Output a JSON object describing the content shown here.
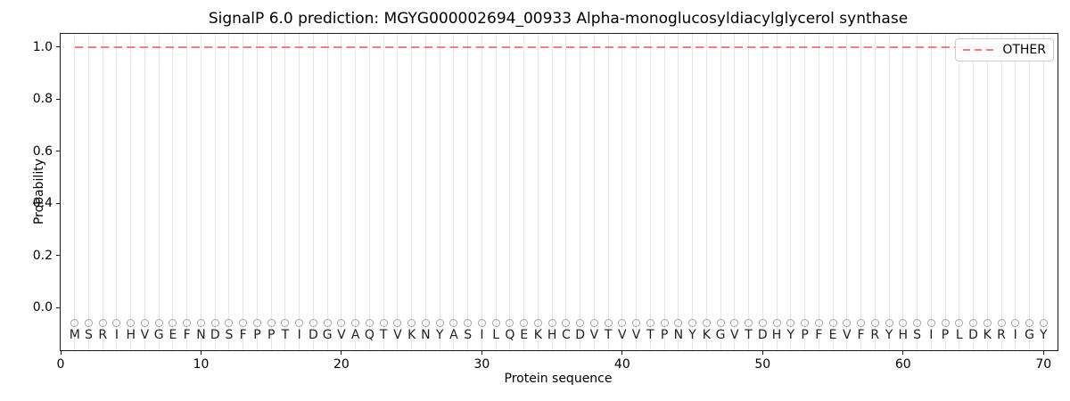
{
  "chart_data": {
    "type": "line",
    "title": "SignalP 6.0 prediction: MGYG000002694_00933 Alpha-monoglucosyldiacylglycerol synthase",
    "xlabel": "Protein sequence",
    "ylabel": "Probability",
    "xlim": [
      0,
      71
    ],
    "ylim": [
      -0.164,
      1.051
    ],
    "x_ticks": [
      0,
      10,
      20,
      30,
      40,
      50,
      60,
      70
    ],
    "y_ticks": [
      "0.0",
      "0.2",
      "0.4",
      "0.6",
      "0.8",
      "1.0"
    ],
    "grid": {
      "vertical_per_position": true,
      "horizontal": false
    },
    "legend": {
      "position": "upper right",
      "entries": [
        {
          "label": "OTHER",
          "color": "#f08080",
          "linestyle": "dashed"
        }
      ]
    },
    "series": [
      {
        "name": "OTHER",
        "color": "#f08080",
        "linestyle": "dashed",
        "linewidth": 2,
        "x": [
          1,
          2,
          3,
          4,
          5,
          6,
          7,
          8,
          9,
          10,
          11,
          12,
          13,
          14,
          15,
          16,
          17,
          18,
          19,
          20,
          21,
          22,
          23,
          24,
          25,
          26,
          27,
          28,
          29,
          30,
          31,
          32,
          33,
          34,
          35,
          36,
          37,
          38,
          39,
          40,
          41,
          42,
          43,
          44,
          45,
          46,
          47,
          48,
          49,
          50,
          51,
          52,
          53,
          54,
          55,
          56,
          57,
          58,
          59,
          60,
          61,
          62,
          63,
          64,
          65,
          66,
          67,
          68,
          69,
          70
        ],
        "y": [
          1.0,
          1.0,
          1.0,
          1.0,
          1.0,
          1.0,
          1.0,
          1.0,
          1.0,
          1.0,
          1.0,
          1.0,
          1.0,
          1.0,
          1.0,
          1.0,
          1.0,
          1.0,
          1.0,
          1.0,
          1.0,
          1.0,
          1.0,
          1.0,
          1.0,
          1.0,
          1.0,
          1.0,
          1.0,
          1.0,
          1.0,
          1.0,
          1.0,
          1.0,
          1.0,
          1.0,
          1.0,
          1.0,
          1.0,
          1.0,
          1.0,
          1.0,
          1.0,
          1.0,
          1.0,
          1.0,
          1.0,
          1.0,
          1.0,
          1.0,
          1.0,
          1.0,
          1.0,
          1.0,
          1.0,
          1.0,
          1.0,
          1.0,
          1.0,
          1.0,
          1.0,
          1.0,
          1.0,
          1.0,
          1.0,
          1.0,
          1.0,
          1.0,
          1.0,
          1.0
        ]
      }
    ],
    "sequence_track": {
      "sequence": "MSRIHVGEFNDSFPPTIDGVAQTVKNYASILQEKHCDVTVVTPNYKGVTDHYPFEVFRYHSIPLDKRIGY",
      "start_position": 1,
      "marker_symbol": "circle",
      "marker_y": -0.058,
      "marker_color": "#a3a3a3",
      "letter_y": -0.105,
      "letter_color": "#1f1f1f"
    },
    "colors": {
      "grid": "#e7e7e7",
      "spine": "#1a1a1a",
      "background": "#ffffff",
      "other_line": "#f08080",
      "legend_border": "#cccccc"
    }
  }
}
